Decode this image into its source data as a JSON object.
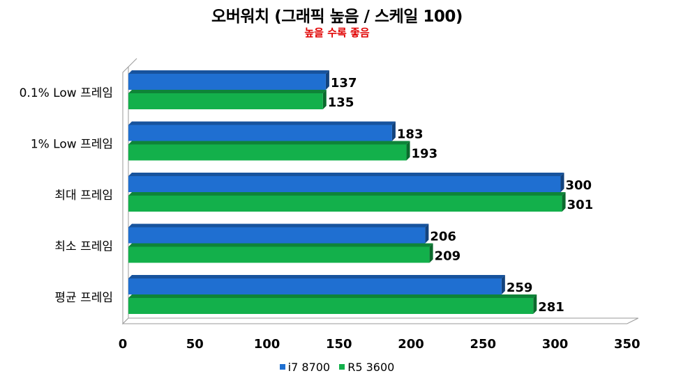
{
  "chart_data": {
    "type": "bar",
    "orientation": "horizontal",
    "title": "오버워치 (그래픽 높음 / 스케일 100)",
    "subtitle": "높을 수록 좋음",
    "categories": [
      "0.1% Low 프레임",
      "1% Low 프레임",
      "최대 프레임",
      "최소 프레임",
      "평균 프레임"
    ],
    "series": [
      {
        "name": "i7 8700",
        "color": "#1f6fd1",
        "values": [
          137,
          183,
          300,
          206,
          259
        ]
      },
      {
        "name": "R5 3600",
        "color": "#13b04b",
        "values": [
          135,
          193,
          301,
          209,
          281
        ]
      }
    ],
    "xlim": [
      0,
      350
    ],
    "xticks": [
      "0",
      "50",
      "100",
      "150",
      "200",
      "250",
      "300",
      "350"
    ],
    "legend_position": "bottom",
    "grid": false,
    "colors": {
      "subtitle": "#e00000"
    }
  }
}
